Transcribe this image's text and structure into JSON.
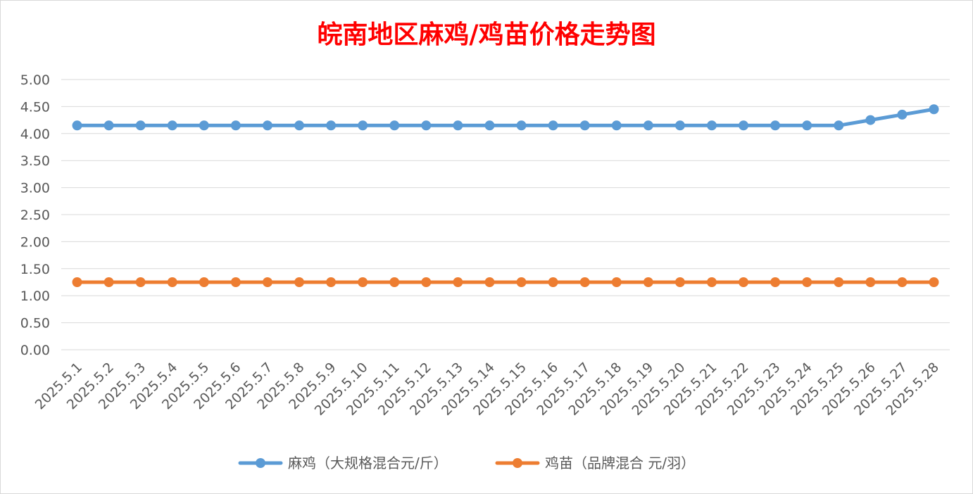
{
  "chart_data": {
    "type": "line",
    "title": "皖南地区麻鸡/鸡苗价格走势图",
    "categories": [
      "2025.5.1",
      "2025.5.2",
      "2025.5.3",
      "2025.5.4",
      "2025.5.5",
      "2025.5.6",
      "2025.5.7",
      "2025.5.8",
      "2025.5.9",
      "2025.5.10",
      "2025.5.11",
      "2025.5.12",
      "2025.5.13",
      "2025.5.14",
      "2025.5.15",
      "2025.5.16",
      "2025.5.17",
      "2025.5.18",
      "2025.5.19",
      "2025.5.20",
      "2025.5.21",
      "2025.5.22",
      "2025.5.23",
      "2025.5.24",
      "2025.5.25",
      "2025.5.26",
      "2025.5.27",
      "2025.5.28"
    ],
    "y_ticks": [
      "0.00",
      "0.50",
      "1.00",
      "1.50",
      "2.00",
      "2.50",
      "3.00",
      "3.50",
      "4.00",
      "4.50",
      "5.00"
    ],
    "ylim": [
      0,
      5
    ],
    "grid": true,
    "legend_position": "bottom",
    "series": [
      {
        "name": "麻鸡（大规格混合元/斤）",
        "color": "#5b9bd5",
        "values": [
          4.15,
          4.15,
          4.15,
          4.15,
          4.15,
          4.15,
          4.15,
          4.15,
          4.15,
          4.15,
          4.15,
          4.15,
          4.15,
          4.15,
          4.15,
          4.15,
          4.15,
          4.15,
          4.15,
          4.15,
          4.15,
          4.15,
          4.15,
          4.15,
          4.15,
          4.25,
          4.35,
          4.45
        ]
      },
      {
        "name": "鸡苗（品牌混合 元/羽）",
        "color": "#ed7d31",
        "values": [
          1.25,
          1.25,
          1.25,
          1.25,
          1.25,
          1.25,
          1.25,
          1.25,
          1.25,
          1.25,
          1.25,
          1.25,
          1.25,
          1.25,
          1.25,
          1.25,
          1.25,
          1.25,
          1.25,
          1.25,
          1.25,
          1.25,
          1.25,
          1.25,
          1.25,
          1.25,
          1.25,
          1.25
        ]
      }
    ]
  }
}
